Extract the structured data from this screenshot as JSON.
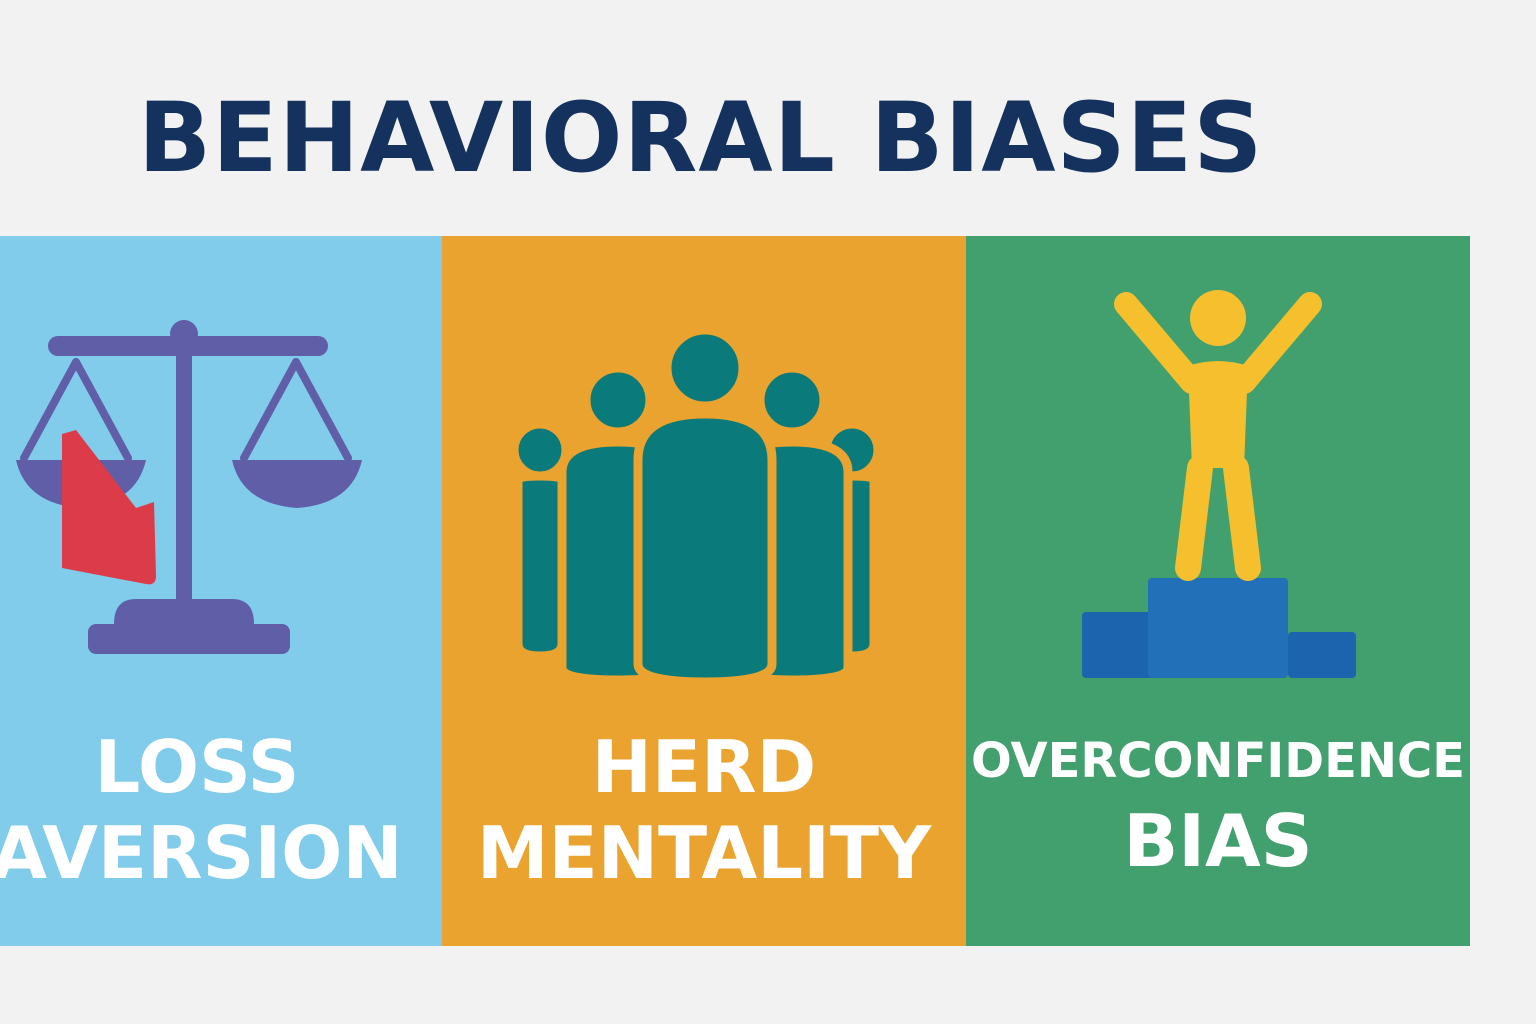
{
  "title": "BEHAVIORAL BIASES",
  "colors": {
    "title": "#15325e",
    "loss_panel": "#81cbeb",
    "herd_panel": "#eaa32e",
    "overconfidence_panel": "#41a06d",
    "scale": "#5f5ea6",
    "loss_flag": "#dc3b4a",
    "crowd": "#0b7a7a",
    "winner": "#f5bf2e",
    "podium": "#1c64ad",
    "label_text": "#ffffff"
  },
  "panels": [
    {
      "icon": "balance-scale-icon",
      "label_lines": [
        "LOSS",
        "AVERSION"
      ]
    },
    {
      "icon": "crowd-icon",
      "label_lines": [
        "HERD",
        "MENTALITY"
      ]
    },
    {
      "icon": "podium-winner-icon",
      "label_lines": [
        "OVERCONFIDENCE",
        "BIAS"
      ]
    }
  ]
}
